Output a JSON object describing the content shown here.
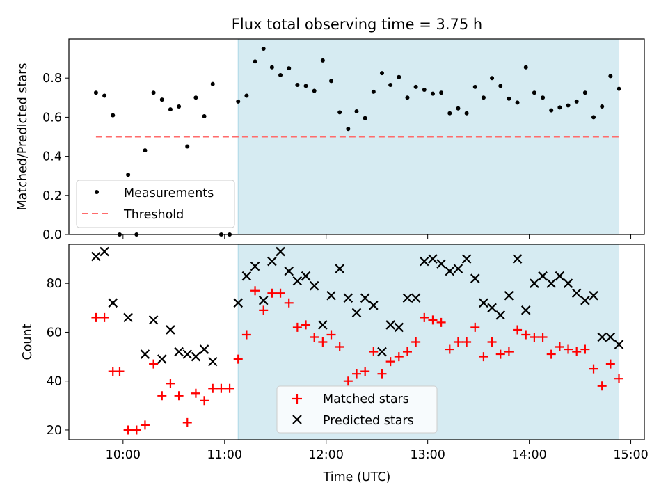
{
  "figure": {
    "title": "Flux total observing time = 3.75 h",
    "xlabel": "Time (UTC)"
  },
  "chart_data": [
    {
      "type": "scatter",
      "id": "ratio",
      "ylabel": "Matched/Predicted stars",
      "xlim": [
        "09:28",
        "15:08"
      ],
      "ylim": [
        0,
        1.0
      ],
      "yticks": [
        0.0,
        0.2,
        0.4,
        0.6,
        0.8
      ],
      "ytick_labels": [
        "0.0",
        "0.2",
        "0.4",
        "0.6",
        "0.8"
      ],
      "shaded_interval": {
        "start": "11:08",
        "end": "14:53",
        "color": "#add8e6"
      },
      "threshold": {
        "name": "Threshold",
        "value": 0.5,
        "start": "09:44",
        "end": "14:53",
        "color": "#ff6b6b"
      },
      "legend_position": "lower-left",
      "series": [
        {
          "name": "Measurements",
          "color": "#000000",
          "points": [
            [
              "09:44",
              0.725
            ],
            [
              "09:49",
              0.71
            ],
            [
              "09:54",
              0.61
            ],
            [
              "09:58",
              0.0
            ],
            [
              "10:03",
              0.305
            ],
            [
              "10:08",
              0.0
            ],
            [
              "10:13",
              0.43
            ],
            [
              "10:18",
              0.725
            ],
            [
              "10:23",
              0.69
            ],
            [
              "10:28",
              0.64
            ],
            [
              "10:33",
              0.655
            ],
            [
              "10:38",
              0.45
            ],
            [
              "10:43",
              0.7
            ],
            [
              "10:48",
              0.605
            ],
            [
              "10:53",
              0.77
            ],
            [
              "10:58",
              0.0
            ],
            [
              "11:03",
              0.0
            ],
            [
              "11:08",
              0.68
            ],
            [
              "11:13",
              0.71
            ],
            [
              "11:18",
              0.885
            ],
            [
              "11:23",
              0.95
            ],
            [
              "11:28",
              0.855
            ],
            [
              "11:33",
              0.815
            ],
            [
              "11:38",
              0.85
            ],
            [
              "11:43",
              0.765
            ],
            [
              "11:48",
              0.76
            ],
            [
              "11:53",
              0.735
            ],
            [
              "11:58",
              0.89
            ],
            [
              "12:03",
              0.785
            ],
            [
              "12:08",
              0.625
            ],
            [
              "12:13",
              0.54
            ],
            [
              "12:18",
              0.63
            ],
            [
              "12:23",
              0.595
            ],
            [
              "12:28",
              0.73
            ],
            [
              "12:33",
              0.825
            ],
            [
              "12:38",
              0.765
            ],
            [
              "12:43",
              0.805
            ],
            [
              "12:48",
              0.7
            ],
            [
              "12:53",
              0.755
            ],
            [
              "12:58",
              0.74
            ],
            [
              "13:03",
              0.72
            ],
            [
              "13:08",
              0.725
            ],
            [
              "13:13",
              0.62
            ],
            [
              "13:18",
              0.645
            ],
            [
              "13:23",
              0.62
            ],
            [
              "13:28",
              0.755
            ],
            [
              "13:33",
              0.7
            ],
            [
              "13:38",
              0.8
            ],
            [
              "13:43",
              0.76
            ],
            [
              "13:48",
              0.695
            ],
            [
              "13:53",
              0.675
            ],
            [
              "13:58",
              0.855
            ],
            [
              "14:03",
              0.725
            ],
            [
              "14:08",
              0.7
            ],
            [
              "14:13",
              0.635
            ],
            [
              "14:18",
              0.65
            ],
            [
              "14:23",
              0.66
            ],
            [
              "14:28",
              0.68
            ],
            [
              "14:33",
              0.725
            ],
            [
              "14:38",
              0.6
            ],
            [
              "14:43",
              0.655
            ],
            [
              "14:48",
              0.81
            ],
            [
              "14:53",
              0.745
            ]
          ]
        }
      ]
    },
    {
      "type": "scatter",
      "id": "counts",
      "ylabel": "Count",
      "xlim": [
        "09:28",
        "15:08"
      ],
      "ylim": [
        16,
        96
      ],
      "yticks": [
        20,
        40,
        60,
        80
      ],
      "ytick_labels": [
        "20",
        "40",
        "60",
        "80"
      ],
      "xticks": [
        "10:00",
        "11:00",
        "12:00",
        "13:00",
        "14:00",
        "15:00"
      ],
      "xtick_labels": [
        "10:00",
        "11:00",
        "12:00",
        "13:00",
        "14:00",
        "15:00"
      ],
      "shaded_interval": {
        "start": "11:08",
        "end": "14:53",
        "color": "#add8e6"
      },
      "legend_position": "lower-center",
      "series": [
        {
          "name": "Matched stars",
          "marker": "plus",
          "color": "#ff0000",
          "points": [
            [
              "09:44",
              66
            ],
            [
              "09:49",
              66
            ],
            [
              "09:54",
              44
            ],
            [
              "09:58",
              44
            ],
            [
              "10:03",
              20
            ],
            [
              "10:08",
              20
            ],
            [
              "10:13",
              22
            ],
            [
              "10:18",
              47
            ],
            [
              "10:23",
              34
            ],
            [
              "10:28",
              39
            ],
            [
              "10:33",
              34
            ],
            [
              "10:38",
              23
            ],
            [
              "10:43",
              35
            ],
            [
              "10:48",
              32
            ],
            [
              "10:53",
              37
            ],
            [
              "10:58",
              37
            ],
            [
              "11:03",
              37
            ],
            [
              "11:08",
              49
            ],
            [
              "11:13",
              59
            ],
            [
              "11:18",
              77
            ],
            [
              "11:23",
              69
            ],
            [
              "11:28",
              76
            ],
            [
              "11:33",
              76
            ],
            [
              "11:38",
              72
            ],
            [
              "11:43",
              62
            ],
            [
              "11:48",
              63
            ],
            [
              "11:53",
              58
            ],
            [
              "11:58",
              56
            ],
            [
              "12:03",
              59
            ],
            [
              "12:08",
              54
            ],
            [
              "12:13",
              40
            ],
            [
              "12:18",
              43
            ],
            [
              "12:23",
              44
            ],
            [
              "12:28",
              52
            ],
            [
              "12:33",
              43
            ],
            [
              "12:38",
              48
            ],
            [
              "12:43",
              50
            ],
            [
              "12:48",
              52
            ],
            [
              "12:53",
              56
            ],
            [
              "12:58",
              66
            ],
            [
              "13:03",
              65
            ],
            [
              "13:08",
              64
            ],
            [
              "13:13",
              53
            ],
            [
              "13:18",
              56
            ],
            [
              "13:23",
              56
            ],
            [
              "13:28",
              62
            ],
            [
              "13:33",
              50
            ],
            [
              "13:38",
              56
            ],
            [
              "13:43",
              51
            ],
            [
              "13:48",
              52
            ],
            [
              "13:53",
              61
            ],
            [
              "13:58",
              59
            ],
            [
              "14:03",
              58
            ],
            [
              "14:08",
              58
            ],
            [
              "14:13",
              51
            ],
            [
              "14:18",
              54
            ],
            [
              "14:23",
              53
            ],
            [
              "14:28",
              52
            ],
            [
              "14:33",
              53
            ],
            [
              "14:38",
              45
            ],
            [
              "14:43",
              38
            ],
            [
              "14:48",
              47
            ],
            [
              "14:53",
              41
            ]
          ]
        },
        {
          "name": "Predicted stars",
          "marker": "x",
          "color": "#000000",
          "points": [
            [
              "09:44",
              91
            ],
            [
              "09:49",
              93
            ],
            [
              "09:54",
              72
            ],
            [
              "10:03",
              66
            ],
            [
              "10:13",
              51
            ],
            [
              "10:18",
              65
            ],
            [
              "10:23",
              49
            ],
            [
              "10:28",
              61
            ],
            [
              "10:33",
              52
            ],
            [
              "10:38",
              51
            ],
            [
              "10:43",
              50
            ],
            [
              "10:48",
              53
            ],
            [
              "10:53",
              48
            ],
            [
              "11:08",
              72
            ],
            [
              "11:13",
              83
            ],
            [
              "11:18",
              87
            ],
            [
              "11:23",
              73
            ],
            [
              "11:28",
              89
            ],
            [
              "11:33",
              93
            ],
            [
              "11:38",
              85
            ],
            [
              "11:43",
              81
            ],
            [
              "11:48",
              83
            ],
            [
              "11:53",
              79
            ],
            [
              "11:58",
              63
            ],
            [
              "12:03",
              75
            ],
            [
              "12:08",
              86
            ],
            [
              "12:13",
              74
            ],
            [
              "12:18",
              68
            ],
            [
              "12:23",
              74
            ],
            [
              "12:28",
              71
            ],
            [
              "12:33",
              52
            ],
            [
              "12:38",
              63
            ],
            [
              "12:43",
              62
            ],
            [
              "12:48",
              74
            ],
            [
              "12:53",
              74
            ],
            [
              "12:58",
              89
            ],
            [
              "13:03",
              90
            ],
            [
              "13:08",
              88
            ],
            [
              "13:13",
              85
            ],
            [
              "13:18",
              86
            ],
            [
              "13:23",
              90
            ],
            [
              "13:28",
              82
            ],
            [
              "13:33",
              72
            ],
            [
              "13:38",
              70
            ],
            [
              "13:43",
              67
            ],
            [
              "13:48",
              75
            ],
            [
              "13:53",
              90
            ],
            [
              "13:58",
              69
            ],
            [
              "14:03",
              80
            ],
            [
              "14:08",
              83
            ],
            [
              "14:13",
              80
            ],
            [
              "14:18",
              83
            ],
            [
              "14:23",
              80
            ],
            [
              "14:28",
              76
            ],
            [
              "14:33",
              73
            ],
            [
              "14:38",
              75
            ],
            [
              "14:43",
              58
            ],
            [
              "14:48",
              58
            ],
            [
              "14:53",
              55
            ]
          ]
        }
      ]
    }
  ]
}
